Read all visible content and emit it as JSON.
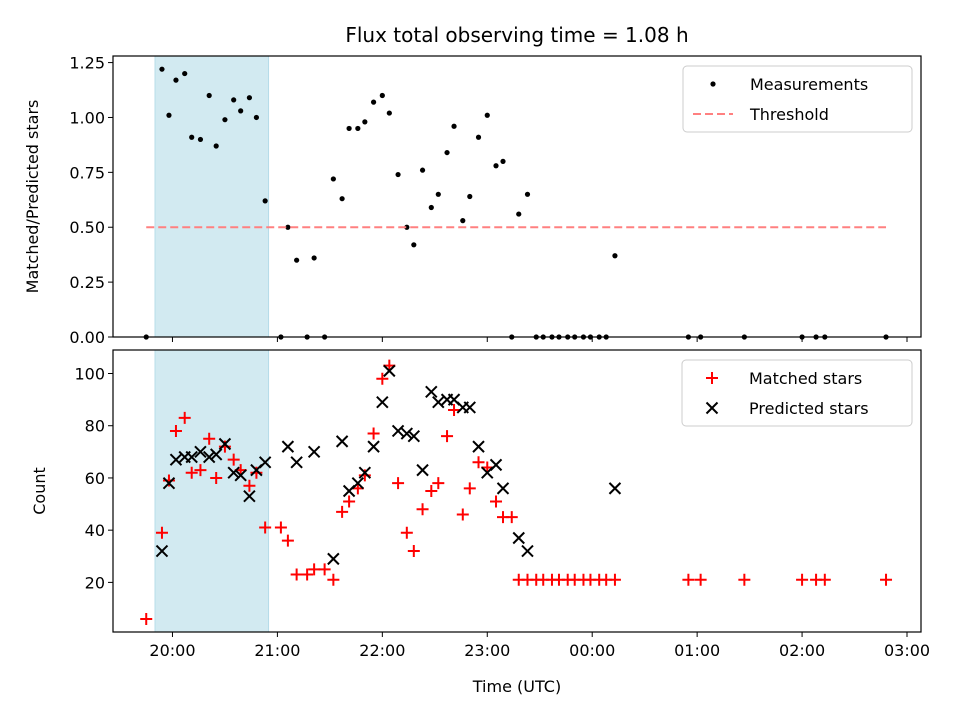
{
  "chart_data": [
    {
      "type": "scatter",
      "title": "Flux total observing time = 1.08 h",
      "xlabel": "",
      "ylabel": "Matched/Predicted stars",
      "ylim": [
        0,
        1.28
      ],
      "yticks": [
        0,
        0.25,
        0.5,
        0.75,
        1.0,
        1.25
      ],
      "ytick_labels": [
        "0.00",
        "0.25",
        "0.50",
        "0.75",
        "1.00",
        "1.25"
      ],
      "xtick_labels_shown": false,
      "highlight_band": {
        "start": "19:50",
        "end": "20:55",
        "color": "#add8e6"
      },
      "legend": {
        "placement": "top-right",
        "entries": [
          {
            "name": "Measurements",
            "marker": "dot",
            "color": "#000000"
          },
          {
            "name": "Threshold",
            "marker": "dashed-line",
            "color": "#ff8080"
          }
        ]
      },
      "series": [
        {
          "name": "Measurements",
          "color": "#000000",
          "points": [
            [
              "19:45",
              0.0
            ],
            [
              "19:54",
              1.22
            ],
            [
              "19:58",
              1.01
            ],
            [
              "20:02",
              1.17
            ],
            [
              "20:07",
              1.2
            ],
            [
              "20:11",
              0.91
            ],
            [
              "20:16",
              0.9
            ],
            [
              "20:21",
              1.1
            ],
            [
              "20:25",
              0.87
            ],
            [
              "20:30",
              0.99
            ],
            [
              "20:35",
              1.08
            ],
            [
              "20:39",
              1.03
            ],
            [
              "20:44",
              1.09
            ],
            [
              "20:48",
              1.0
            ],
            [
              "20:53",
              0.62
            ],
            [
              "21:02",
              0.0
            ],
            [
              "21:06",
              0.5
            ],
            [
              "21:11",
              0.35
            ],
            [
              "21:17",
              0.0
            ],
            [
              "21:21",
              0.36
            ],
            [
              "21:27",
              0.0
            ],
            [
              "21:32",
              0.72
            ],
            [
              "21:37",
              0.63
            ],
            [
              "21:41",
              0.95
            ],
            [
              "21:46",
              0.95
            ],
            [
              "21:50",
              0.98
            ],
            [
              "21:55",
              1.07
            ],
            [
              "22:00",
              1.1
            ],
            [
              "22:04",
              1.02
            ],
            [
              "22:09",
              0.74
            ],
            [
              "22:14",
              0.5
            ],
            [
              "22:18",
              0.42
            ],
            [
              "22:23",
              0.76
            ],
            [
              "22:28",
              0.59
            ],
            [
              "22:32",
              0.65
            ],
            [
              "22:37",
              0.84
            ],
            [
              "22:41",
              0.96
            ],
            [
              "22:46",
              0.53
            ],
            [
              "22:50",
              0.64
            ],
            [
              "22:55",
              0.91
            ],
            [
              "23:00",
              1.01
            ],
            [
              "23:05",
              0.78
            ],
            [
              "23:09",
              0.8
            ],
            [
              "23:14",
              0.0
            ],
            [
              "23:18",
              0.56
            ],
            [
              "23:23",
              0.65
            ],
            [
              "23:28",
              0.0
            ],
            [
              "23:32",
              0.0
            ],
            [
              "23:37",
              0.0
            ],
            [
              "23:41",
              0.0
            ],
            [
              "23:46",
              0.0
            ],
            [
              "23:50",
              0.0
            ],
            [
              "23:55",
              0.0
            ],
            [
              "23:59",
              0.0
            ],
            [
              "00:04",
              0.0
            ],
            [
              "00:08",
              0.0
            ],
            [
              "00:13",
              0.37
            ],
            [
              "00:55",
              0.0
            ],
            [
              "01:02",
              0.0
            ],
            [
              "01:27",
              0.0
            ],
            [
              "02:00",
              0.0
            ],
            [
              "02:08",
              0.0
            ],
            [
              "02:13",
              0.0
            ],
            [
              "02:48",
              0.0
            ]
          ]
        },
        {
          "name": "Threshold",
          "color": "#ff8080",
          "style": "dashed",
          "x_range": [
            "19:45",
            "02:48"
          ],
          "value": 0.5
        }
      ]
    },
    {
      "type": "scatter",
      "title": "",
      "xlabel": "Time (UTC)",
      "ylabel": "Count",
      "ylim": [
        1,
        109
      ],
      "yticks": [
        20,
        40,
        60,
        80,
        100
      ],
      "ytick_labels": [
        "20",
        "40",
        "60",
        "80",
        "100"
      ],
      "xlim": [
        "19:26",
        "03:08"
      ],
      "xticks": [
        "20:00",
        "21:00",
        "22:00",
        "23:00",
        "00:00",
        "01:00",
        "02:00",
        "03:00"
      ],
      "xtick_labels": [
        "20:00",
        "21:00",
        "22:00",
        "23:00",
        "00:00",
        "01:00",
        "02:00",
        "03:00"
      ],
      "highlight_band": {
        "start": "19:50",
        "end": "20:55",
        "color": "#add8e6"
      },
      "legend": {
        "placement": "top-right",
        "entries": [
          {
            "name": "Matched stars",
            "marker": "plus",
            "color": "#ff0000"
          },
          {
            "name": "Predicted stars",
            "marker": "x",
            "color": "#000000"
          }
        ]
      },
      "series": [
        {
          "name": "Matched stars",
          "color": "#ff0000",
          "marker": "plus",
          "points": [
            [
              "19:45",
              6
            ],
            [
              "19:54",
              39
            ],
            [
              "19:58",
              59
            ],
            [
              "20:02",
              78
            ],
            [
              "20:07",
              83
            ],
            [
              "20:11",
              62
            ],
            [
              "20:16",
              63
            ],
            [
              "20:21",
              75
            ],
            [
              "20:25",
              60
            ],
            [
              "20:30",
              72
            ],
            [
              "20:35",
              67
            ],
            [
              "20:39",
              63
            ],
            [
              "20:44",
              57
            ],
            [
              "20:48",
              62
            ],
            [
              "20:53",
              41
            ],
            [
              "21:02",
              41
            ],
            [
              "21:06",
              36
            ],
            [
              "21:11",
              23
            ],
            [
              "21:17",
              23
            ],
            [
              "21:21",
              25
            ],
            [
              "21:27",
              25
            ],
            [
              "21:32",
              21
            ],
            [
              "21:37",
              47
            ],
            [
              "21:41",
              51
            ],
            [
              "21:46",
              56
            ],
            [
              "21:50",
              61
            ],
            [
              "21:55",
              77
            ],
            [
              "22:00",
              98
            ],
            [
              "22:04",
              103
            ],
            [
              "22:09",
              58
            ],
            [
              "22:14",
              39
            ],
            [
              "22:18",
              32
            ],
            [
              "22:23",
              48
            ],
            [
              "22:28",
              55
            ],
            [
              "22:32",
              58
            ],
            [
              "22:37",
              76
            ],
            [
              "22:41",
              86
            ],
            [
              "22:46",
              46
            ],
            [
              "22:50",
              56
            ],
            [
              "22:55",
              66
            ],
            [
              "23:00",
              64
            ],
            [
              "23:05",
              51
            ],
            [
              "23:09",
              45
            ],
            [
              "23:14",
              45
            ],
            [
              "23:18",
              21
            ],
            [
              "23:23",
              21
            ],
            [
              "23:28",
              21
            ],
            [
              "23:32",
              21
            ],
            [
              "23:37",
              21
            ],
            [
              "23:41",
              21
            ],
            [
              "23:46",
              21
            ],
            [
              "23:50",
              21
            ],
            [
              "23:55",
              21
            ],
            [
              "23:59",
              21
            ],
            [
              "00:04",
              21
            ],
            [
              "00:08",
              21
            ],
            [
              "00:13",
              21
            ],
            [
              "00:55",
              21
            ],
            [
              "01:02",
              21
            ],
            [
              "01:27",
              21
            ],
            [
              "02:00",
              21
            ],
            [
              "02:08",
              21
            ],
            [
              "02:13",
              21
            ],
            [
              "02:48",
              21
            ]
          ]
        },
        {
          "name": "Predicted stars",
          "color": "#000000",
          "marker": "x",
          "points": [
            [
              "19:54",
              32
            ],
            [
              "19:58",
              58
            ],
            [
              "20:02",
              67
            ],
            [
              "20:07",
              68
            ],
            [
              "20:11",
              68
            ],
            [
              "20:16",
              70
            ],
            [
              "20:21",
              68
            ],
            [
              "20:25",
              69
            ],
            [
              "20:30",
              73
            ],
            [
              "20:35",
              62
            ],
            [
              "20:39",
              61
            ],
            [
              "20:44",
              53
            ],
            [
              "20:48",
              63
            ],
            [
              "20:53",
              66
            ],
            [
              "21:06",
              72
            ],
            [
              "21:11",
              66
            ],
            [
              "21:21",
              70
            ],
            [
              "21:32",
              29
            ],
            [
              "21:37",
              74
            ],
            [
              "21:41",
              55
            ],
            [
              "21:46",
              58
            ],
            [
              "21:50",
              62
            ],
            [
              "21:55",
              72
            ],
            [
              "22:00",
              89
            ],
            [
              "22:04",
              101
            ],
            [
              "22:09",
              78
            ],
            [
              "22:14",
              77
            ],
            [
              "22:18",
              76
            ],
            [
              "22:23",
              63
            ],
            [
              "22:28",
              93
            ],
            [
              "22:32",
              89
            ],
            [
              "22:37",
              90
            ],
            [
              "22:41",
              90
            ],
            [
              "22:46",
              87
            ],
            [
              "22:50",
              87
            ],
            [
              "22:55",
              72
            ],
            [
              "23:00",
              62
            ],
            [
              "23:05",
              65
            ],
            [
              "23:09",
              56
            ],
            [
              "23:18",
              37
            ],
            [
              "23:23",
              32
            ],
            [
              "00:13",
              56
            ]
          ]
        }
      ]
    }
  ]
}
